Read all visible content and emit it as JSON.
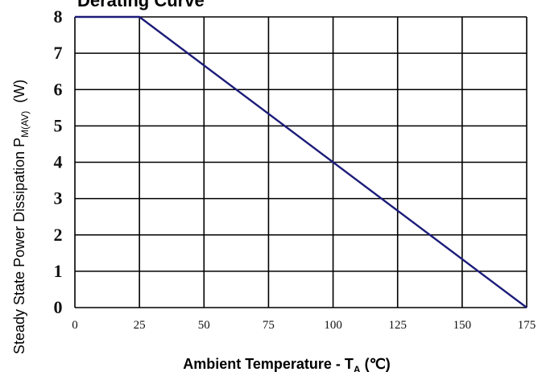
{
  "chart_data": {
    "type": "line",
    "title": "Derating  Curve",
    "xlabel": "Ambient Temperature - T",
    "xlabel_subscript": "A",
    "xlabel_unit": "(℃)",
    "ylabel": "Steady State Power Dissipation   P",
    "ylabel_subscript": "M(AV)",
    "ylabel_unit": "(W)",
    "x_ticks": [
      0,
      25,
      50,
      75,
      100,
      125,
      150,
      175
    ],
    "y_ticks": [
      0,
      1,
      2,
      3,
      4,
      5,
      6,
      7,
      8
    ],
    "xlim": [
      0,
      175
    ],
    "ylim": [
      0,
      8
    ],
    "grid": true,
    "series": [
      {
        "color": "#1c1c7a",
        "points": [
          {
            "x": 0,
            "y": 8
          },
          {
            "x": 25,
            "y": 8
          },
          {
            "x": 175,
            "y": 0
          }
        ]
      }
    ]
  }
}
